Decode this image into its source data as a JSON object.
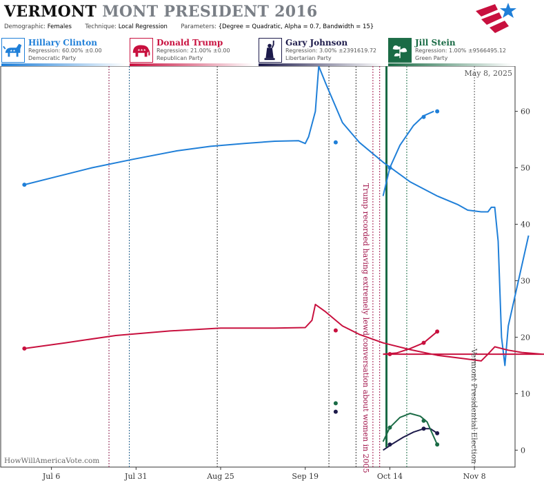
{
  "header": {
    "title_part1": "VERMONT",
    "title_part2": "MONT PRESIDENT 2016",
    "demographic_label": "Demographic:",
    "demographic_value": "Females",
    "technique_label": "Technique:",
    "technique_value": "Local Regression",
    "parameters_label": "Parameters:",
    "parameters_value": "{Degree = Quadratic, Alpha = 0.7, Bandwidth = 15}"
  },
  "candidates": [
    {
      "name": "Hillary Clinton",
      "regression": "Regression: 60.00% ±0.00",
      "party": "Democratic Party",
      "color": "#1f7fd8",
      "icon": "donkey-icon"
    },
    {
      "name": "Donald Trump",
      "regression": "Regression: 21.00% ±0.00",
      "party": "Republican Party",
      "color": "#c8103e",
      "icon": "elephant-icon"
    },
    {
      "name": "Gary Johnson",
      "regression": "Regression: 3.00% ±2391619.72",
      "party": "Libertarian Party",
      "color": "#1c1a4a",
      "icon": "statue-of-liberty-icon"
    },
    {
      "name": "Jill Stein",
      "regression": "Regression: 1.00% ±9566495.12",
      "party": "Green Party",
      "color": "#1a6b45",
      "icon": "leaf-icon"
    }
  ],
  "chart_data": {
    "type": "line",
    "date_label": "May 8, 2025",
    "watermark": "HowWillAmericaVote.com",
    "x_ticks": [
      "Jul 6",
      "Jul 31",
      "Aug 25",
      "Sep 19",
      "Oct 14",
      "Nov 8"
    ],
    "y_ticks": [
      0,
      10,
      20,
      30,
      40,
      50,
      60
    ],
    "ylim": [
      -3,
      68
    ],
    "xlim": [
      "2016-06-21",
      "2016-11-20"
    ],
    "annotations": [
      {
        "date": "2016-10-07",
        "text": "Trump recorded having extremely lewd conversation about women in 2005",
        "color": "#a0134a"
      },
      {
        "date": "2016-11-08",
        "text": "Vermont Presidential Election",
        "color": "#555555"
      }
    ],
    "vertical_event_lines": [
      {
        "date": "2016-07-23",
        "color": "#8b1a4a"
      },
      {
        "date": "2016-07-29",
        "color": "#1f5e8a"
      },
      {
        "date": "2016-08-24",
        "color": "#333333"
      },
      {
        "date": "2016-09-26",
        "color": "#333333"
      },
      {
        "date": "2016-10-04",
        "color": "#333333"
      },
      {
        "date": "2016-10-09",
        "color": "#a0134a"
      },
      {
        "date": "2016-10-11",
        "color": "#a0134a"
      },
      {
        "date": "2016-10-19",
        "color": "#1a6b45"
      },
      {
        "date": "2016-11-08",
        "color": "#555555"
      }
    ],
    "highlight_line": {
      "date": "2016-10-13",
      "color": "#1a6b45"
    },
    "series": [
      {
        "name": "Hillary Clinton",
        "color": "#1f7fd8",
        "line": [
          [
            "2016-06-28",
            47
          ],
          [
            "2016-07-08",
            48.5
          ],
          [
            "2016-07-18",
            50
          ],
          [
            "2016-07-30",
            51.5
          ],
          [
            "2016-08-12",
            53
          ],
          [
            "2016-08-22",
            53.8
          ],
          [
            "2016-09-01",
            54.3
          ],
          [
            "2016-09-10",
            54.7
          ],
          [
            "2016-09-17",
            54.8
          ],
          [
            "2016-09-19",
            54.3
          ],
          [
            "2016-09-20",
            55.5
          ],
          [
            "2016-09-22",
            60
          ],
          [
            "2016-09-23",
            68
          ],
          [
            "2016-09-25",
            65
          ],
          [
            "2016-09-30",
            58
          ],
          [
            "2016-10-05",
            54.5
          ],
          [
            "2016-10-12",
            51
          ],
          [
            "2016-10-20",
            47.5
          ],
          [
            "2016-10-28",
            45
          ],
          [
            "2016-11-03",
            43.5
          ],
          [
            "2016-11-06",
            42.5
          ],
          [
            "2016-11-10",
            42.2
          ],
          [
            "2016-11-12",
            42.2
          ],
          [
            "2016-11-13",
            43
          ],
          [
            "2016-11-14",
            43
          ],
          [
            "2016-11-15",
            37
          ],
          [
            "2016-11-16",
            20
          ],
          [
            "2016-11-17",
            15
          ],
          [
            "2016-11-18",
            22
          ],
          [
            "2016-11-21",
            30
          ],
          [
            "2016-11-24",
            38
          ]
        ],
        "line2": [
          [
            "2016-10-12",
            45
          ],
          [
            "2016-10-14",
            50
          ],
          [
            "2016-10-17",
            54
          ],
          [
            "2016-10-21",
            57.5
          ],
          [
            "2016-10-24",
            59.2
          ],
          [
            "2016-10-27",
            60
          ]
        ],
        "points": [
          [
            "2016-06-28",
            47
          ],
          [
            "2016-09-28",
            54.5
          ],
          [
            "2016-10-14",
            50
          ],
          [
            "2016-10-24",
            59
          ],
          [
            "2016-10-28",
            60
          ]
        ]
      },
      {
        "name": "Donald Trump",
        "color": "#c8103e",
        "line": [
          [
            "2016-06-28",
            18
          ],
          [
            "2016-07-10",
            19
          ],
          [
            "2016-07-25",
            20.3
          ],
          [
            "2016-08-10",
            21.1
          ],
          [
            "2016-08-25",
            21.6
          ],
          [
            "2016-09-10",
            21.6
          ],
          [
            "2016-09-19",
            21.7
          ],
          [
            "2016-09-21",
            23
          ],
          [
            "2016-09-22",
            25.8
          ],
          [
            "2016-09-25",
            24.5
          ],
          [
            "2016-09-30",
            22
          ],
          [
            "2016-10-05",
            20.5
          ],
          [
            "2016-10-12",
            19
          ],
          [
            "2016-10-20",
            17.8
          ],
          [
            "2016-10-28",
            16.8
          ],
          [
            "2016-11-05",
            16.2
          ],
          [
            "2016-11-10",
            15.8
          ],
          [
            "2016-11-12",
            17
          ],
          [
            "2016-11-14",
            18.3
          ],
          [
            "2016-11-18",
            17.7
          ],
          [
            "2016-11-22",
            17.3
          ],
          [
            "2016-11-28",
            17
          ],
          [
            "2016-12-01",
            17
          ],
          [
            "2016-10-12",
            17
          ]
        ],
        "line2": [
          [
            "2016-10-12",
            17
          ],
          [
            "2016-10-16",
            17.2
          ],
          [
            "2016-10-20",
            18
          ],
          [
            "2016-10-24",
            19
          ],
          [
            "2016-10-28",
            21
          ]
        ],
        "points": [
          [
            "2016-06-28",
            18
          ],
          [
            "2016-09-28",
            21.2
          ],
          [
            "2016-10-14",
            17
          ],
          [
            "2016-10-24",
            19
          ],
          [
            "2016-10-28",
            21
          ]
        ]
      },
      {
        "name": "Gary Johnson",
        "color": "#1c1a4a",
        "line": [
          [
            "2016-10-12",
            0
          ],
          [
            "2016-10-15",
            1.2
          ],
          [
            "2016-10-18",
            2.3
          ],
          [
            "2016-10-21",
            3.2
          ],
          [
            "2016-10-24",
            3.8
          ],
          [
            "2016-10-26",
            3.8
          ],
          [
            "2016-10-28",
            3
          ]
        ],
        "points": [
          [
            "2016-09-28",
            6.8
          ],
          [
            "2016-10-14",
            1
          ],
          [
            "2016-10-24",
            3.8
          ],
          [
            "2016-10-28",
            3
          ]
        ]
      },
      {
        "name": "Jill Stein",
        "color": "#1a6b45",
        "line": [
          [
            "2016-10-12",
            1.5
          ],
          [
            "2016-10-14",
            4
          ],
          [
            "2016-10-17",
            5.8
          ],
          [
            "2016-10-20",
            6.5
          ],
          [
            "2016-10-23",
            6
          ],
          [
            "2016-10-25",
            5
          ],
          [
            "2016-10-28",
            1
          ]
        ],
        "points": [
          [
            "2016-09-28",
            8.3
          ],
          [
            "2016-10-14",
            4
          ],
          [
            "2016-10-24",
            5.2
          ],
          [
            "2016-10-28",
            1
          ]
        ]
      }
    ]
  }
}
